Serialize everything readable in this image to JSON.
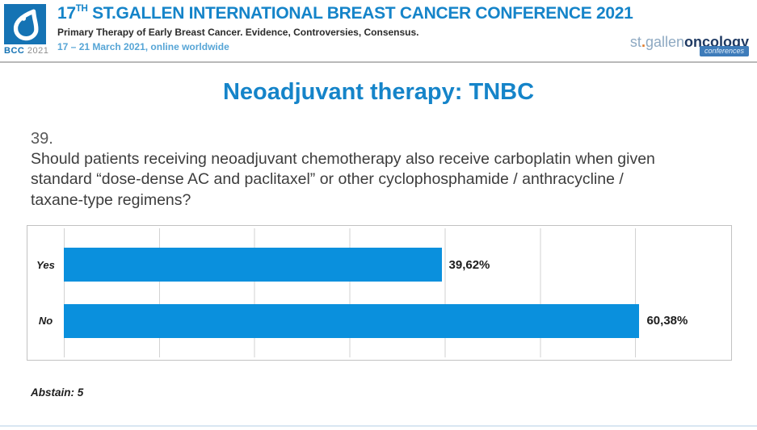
{
  "header": {
    "logo": {
      "acronym": "BCC",
      "year": "2021"
    },
    "title_prefix": "17",
    "title_superscript": "TH",
    "title_rest": " ST.GALLEN INTERNATIONAL BREAST CANCER CONFERENCE 2021",
    "subtitle": "Primary Therapy of Early Breast Cancer. Evidence, Controversies, Consensus.",
    "dates": "17 – 21 March 2021, online worldwide",
    "brand": {
      "st": "st",
      "dot": ".",
      "gallen": "gallen",
      "oncology": "oncology",
      "badge": "conferences"
    }
  },
  "slide": {
    "title": "Neoadjuvant therapy: TNBC",
    "question_number": "39.",
    "question": "Should patients receiving neoadjuvant chemotherapy also receive carboplatin when given standard “dose-dense AC and paclitaxel” or other cyclophosphamide / anthracycline / taxane-type regimens?",
    "abstain": "Abstain: 5"
  },
  "chart_data": {
    "type": "bar",
    "orientation": "horizontal",
    "categories": [
      "Yes",
      "No"
    ],
    "values": [
      39.62,
      60.38
    ],
    "value_labels": [
      "39,62%",
      "60,38%"
    ],
    "xlim": [
      0,
      70
    ],
    "gridline_interval": 10,
    "grid": true,
    "legend": false,
    "bar_color": "#0a90dd"
  },
  "colors": {
    "accent_blue": "#1584c9",
    "bar_blue": "#0a90dd",
    "dates_blue": "#56a5d6",
    "logo_blue": "#1573b4",
    "text_dark": "#3d3d3d"
  }
}
